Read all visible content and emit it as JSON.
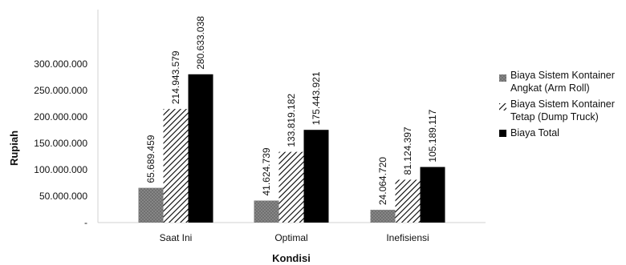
{
  "chart_data": {
    "type": "bar",
    "categories": [
      "Saat Ini",
      "Optimal",
      "Inefisiensi"
    ],
    "series": [
      {
        "name": "Biaya Sistem Kontainer Angkat (Arm Roll)",
        "values": [
          65689459,
          41624739,
          24064720
        ],
        "labels": [
          "65.689.459",
          "41.624.739",
          "24.064.720"
        ],
        "pattern": "gray-crosshatch",
        "color": "#7f7f7f"
      },
      {
        "name": "Biaya Sistem Kontainer Tetap (Dump Truck)",
        "values": [
          214943579,
          133819182,
          81124397
        ],
        "labels": [
          "214.943.579",
          "133.819.182",
          "81.124.397"
        ],
        "pattern": "diagonal-hatch",
        "color": "#000000"
      },
      {
        "name": "Biaya Total",
        "values": [
          280633038,
          175443921,
          105189117
        ],
        "labels": [
          "280.633.038",
          "175.443.921",
          "105.189.117"
        ],
        "pattern": "solid",
        "color": "#000000"
      }
    ],
    "yticks": [
      0,
      50000000,
      100000000,
      150000000,
      200000000,
      250000000,
      300000000
    ],
    "ytick_labels": [
      "-",
      "50.000.000",
      "100.000.000",
      "150.000.000",
      "200.000.000",
      "250.000.000",
      "300.000.000"
    ],
    "ylim": [
      0,
      300000000
    ],
    "xlabel": "Kondisi",
    "ylabel": "Rupiah",
    "legend_position": "right",
    "grid": false
  }
}
